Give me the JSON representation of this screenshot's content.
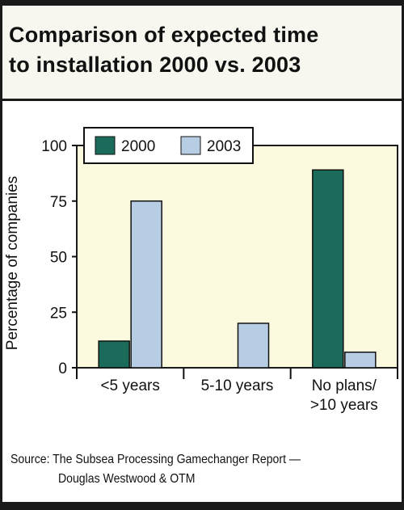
{
  "header": {
    "title_line1": "Comparison of expected time",
    "title_line2": "to installation 2000 vs. 2003"
  },
  "footer": {
    "source_line1": "Source: The Subsea Processing Gamechanger Report —",
    "source_line2": "Douglas Westwood & OTM"
  },
  "colors": {
    "series_2000": "#1b6b5a",
    "series_2003": "#b7cde3",
    "plot_background": "#fbfade",
    "title_background": "#f7f7ef",
    "border": "#1a1a1a"
  },
  "chart_data": {
    "type": "bar",
    "title": "Comparison of expected time to installation 2000 vs. 2003",
    "xlabel": "",
    "ylabel": "Percentage of companies",
    "ylim": [
      0,
      100
    ],
    "yticks": [
      0,
      25,
      50,
      75,
      100
    ],
    "categories": [
      [
        "<5 years"
      ],
      [
        "5-10 years"
      ],
      [
        "No plans/",
        ">10 years"
      ]
    ],
    "series": [
      {
        "name": "2000",
        "values": [
          12,
          0,
          89
        ]
      },
      {
        "name": "2003",
        "values": [
          75,
          20,
          7
        ]
      }
    ],
    "legend_position": "top-left",
    "grid": false
  }
}
